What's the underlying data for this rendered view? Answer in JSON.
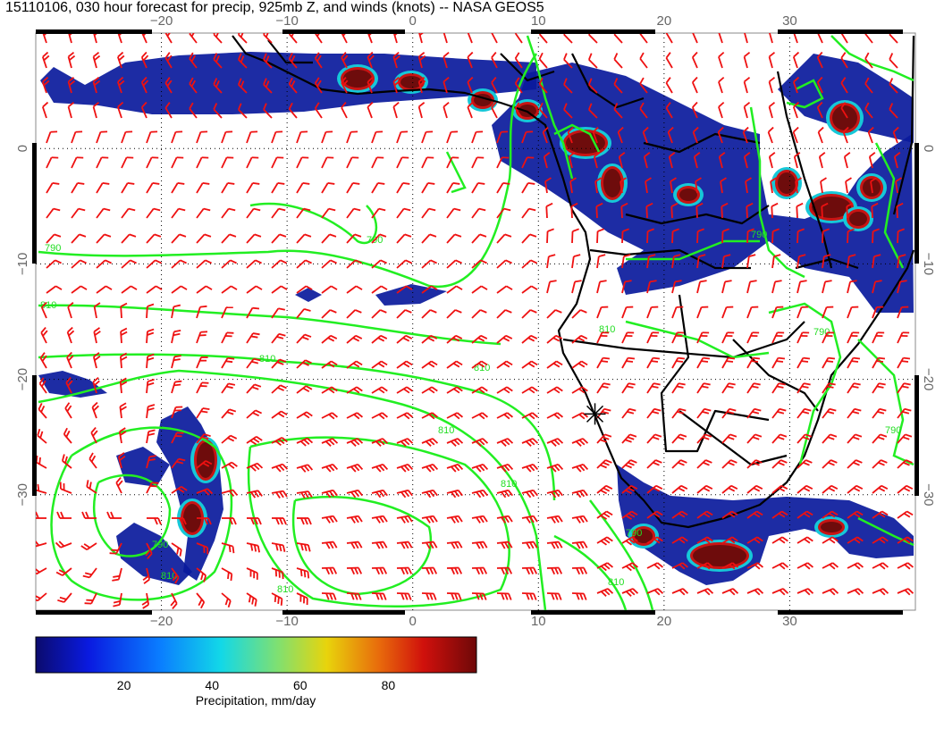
{
  "title": "15110106, 030 hour forecast for precip, 925mb Z, and winds (knots) -- NASA GEOS5",
  "map": {
    "lon_range": [
      -30,
      40
    ],
    "lat_range": [
      -40,
      10
    ],
    "lon_ticks_top": [
      "−20",
      "−10",
      "0",
      "10",
      "20",
      "30"
    ],
    "lon_ticks_bottom": [
      "−20",
      "−10",
      "0",
      "10",
      "20",
      "30"
    ],
    "lat_ticks_left": [
      "0",
      "−10",
      "−20",
      "−30"
    ],
    "lat_ticks_right": [
      "0",
      "−10",
      "−20",
      "−30"
    ],
    "grid": "dotted",
    "marker": {
      "name": "star-marker",
      "lon": 14.5,
      "lat": -23
    }
  },
  "contours": {
    "color": "#22ee22",
    "labels": [
      "790",
      "790",
      "790",
      "810",
      "810",
      "810",
      "810",
      "810",
      "810",
      "790",
      "790",
      "790",
      "790",
      "810",
      "810",
      "810"
    ]
  },
  "precip_colors": {
    "low": "#0a1a9c",
    "mid": "#16c8d8",
    "high": "#c81414",
    "max": "#6e0c0c"
  },
  "wind_barb_color": "#ee1111",
  "colorbar": {
    "ticks": [
      "20",
      "40",
      "60",
      "80"
    ],
    "min": 0,
    "max": 100,
    "label": "Precipitation, mm/day"
  }
}
